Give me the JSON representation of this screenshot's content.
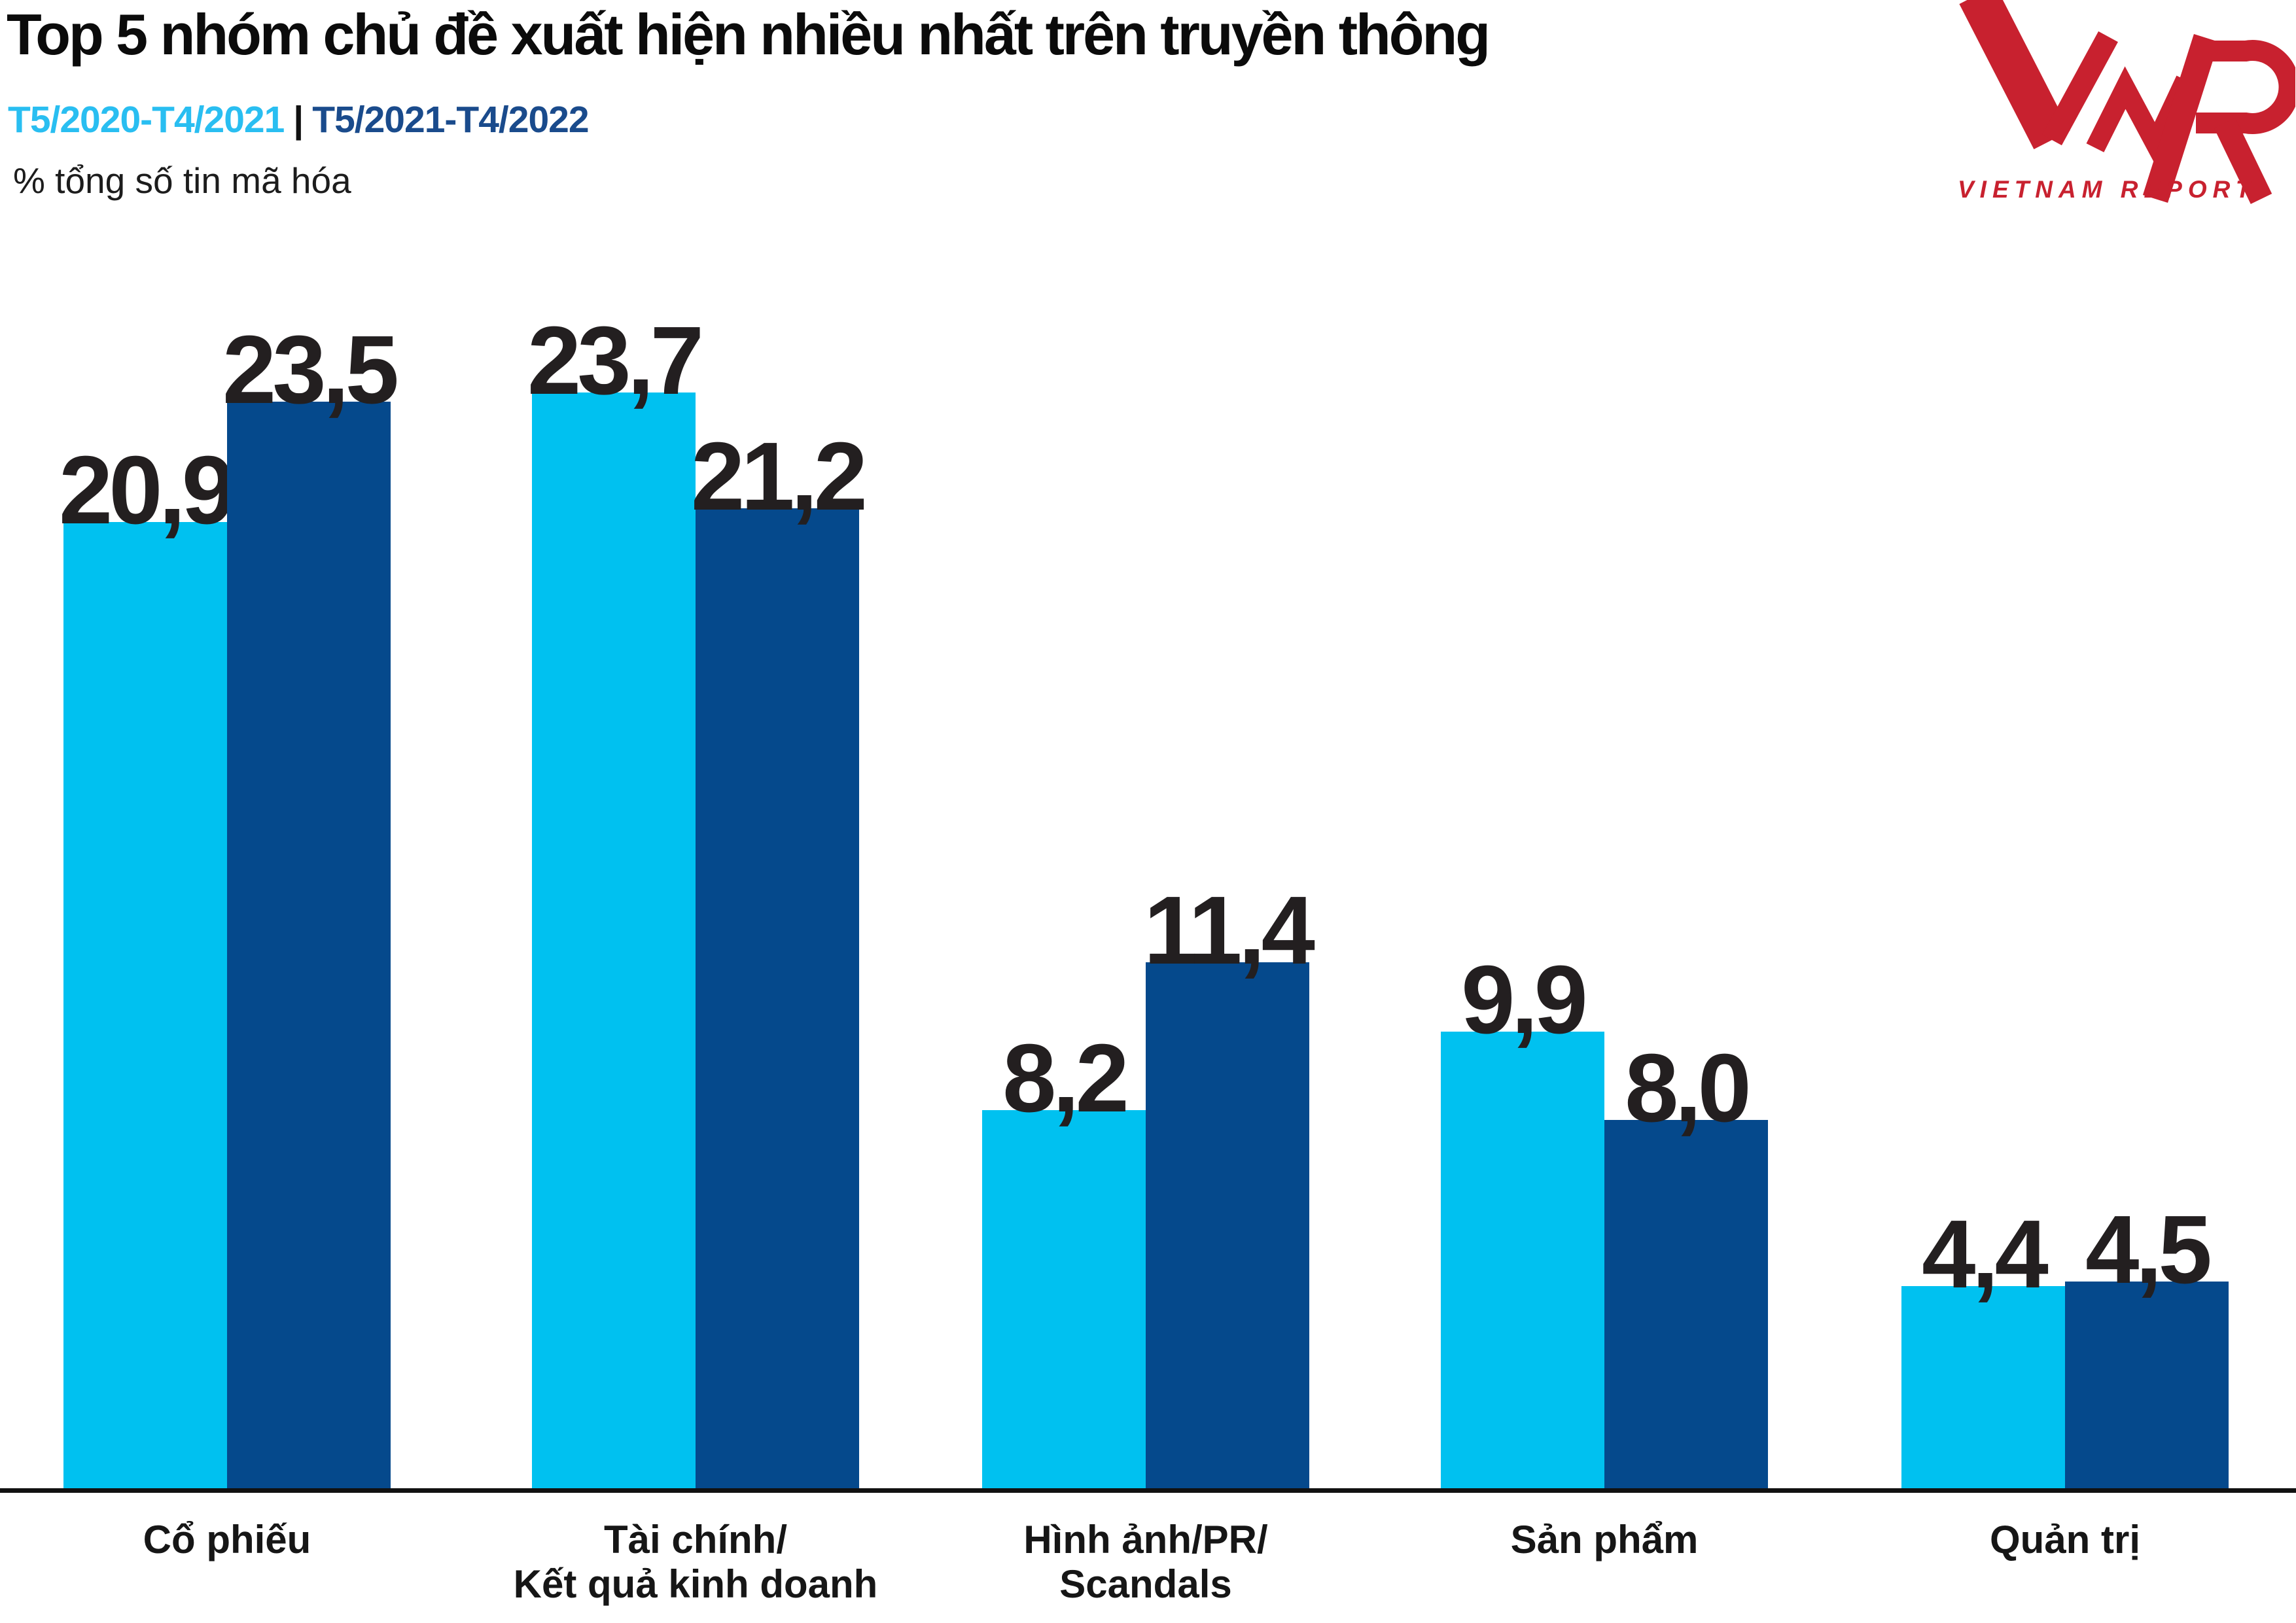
{
  "title": "Top 5 nhóm chủ đề xuất hiện nhiều nhất trên truyền thông",
  "legend": {
    "series1_label": "T5/2020-T4/2021",
    "separator": "|",
    "series2_label": "T5/2021-T4/2022"
  },
  "subtitle": "% tổng số tin mã hóa",
  "logo": {
    "monogram": "VNR",
    "text": "VIETNAM REPORT"
  },
  "colors": {
    "series1": "#00C1F0",
    "series2": "#05498C",
    "legend_series1": "#29BEF1",
    "legend_series2": "#1A4B8C",
    "value_label": "#231F20",
    "axis": "#111111",
    "logo_red": "#C8212F"
  },
  "chart_data": {
    "type": "bar",
    "categories": [
      "Cổ phiếu",
      "Tài chính/\nKết quả kinh doanh",
      "Hình ảnh/PR/\nScandals",
      "Sản phẩm",
      "Quản trị"
    ],
    "series": [
      {
        "name": "T5/2020-T4/2021",
        "values": [
          20.9,
          23.7,
          8.2,
          9.9,
          4.4
        ],
        "value_labels": [
          "20,9",
          "23,7",
          "8,2",
          "9,9",
          "4,4"
        ]
      },
      {
        "name": "T5/2021-T4/2022",
        "values": [
          23.5,
          21.2,
          11.4,
          8.0,
          4.5
        ],
        "value_labels": [
          "23,5",
          "21,2",
          "11,4",
          "8,0",
          "4,5"
        ]
      }
    ],
    "title": "Top 5 nhóm chủ đề xuất hiện nhiều nhất trên truyền thông",
    "xlabel": "",
    "ylabel": "% tổng số tin mã hóa",
    "ylim": [
      0,
      23.7
    ],
    "grid": false,
    "legend_position": "top-left",
    "value_label_format": "comma-decimal"
  }
}
